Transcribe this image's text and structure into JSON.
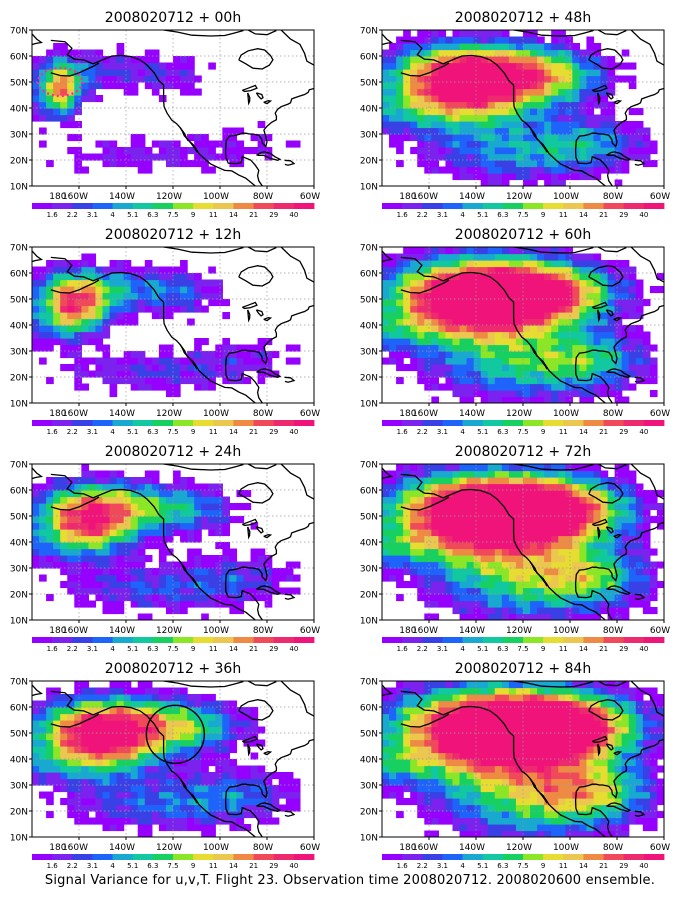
{
  "caption": "Signal Variance for u,v,T. Flight 23. Observation time 2008020712. 2008020600 ensemble.",
  "chart_data": {
    "type": "heatmap",
    "x_ticks": [
      "180",
      "160W",
      "140W",
      "120W",
      "100W",
      "80W",
      "60W"
    ],
    "y_ticks": [
      "10N",
      "20N",
      "30N",
      "40N",
      "50N",
      "60N",
      "70N"
    ],
    "xlim": [
      180,
      300
    ],
    "ylim": [
      10,
      70
    ],
    "grid": true,
    "colorbar": {
      "labels": [
        "1.6",
        "2.2",
        "3.1",
        "4",
        "5.1",
        "6.3",
        "7.5",
        "9",
        "11",
        "14",
        "21",
        "29",
        "40"
      ],
      "colors": [
        "#9600ff",
        "#7c22ee",
        "#3840e6",
        "#1e64fa",
        "#18a8d0",
        "#12c8a0",
        "#18d060",
        "#8ce628",
        "#e6dc32",
        "#ebc750",
        "#ee8a44",
        "#f04a5a",
        "#ee2a6e",
        "#f0147a"
      ]
    },
    "panels": [
      {
        "title": "2008020712 + 00h",
        "spread": 0.0,
        "peak": 8
      },
      {
        "title": "2008020712 + 48h",
        "spread": 0.55,
        "peak": 10
      },
      {
        "title": "2008020712 + 12h",
        "spread": 0.15,
        "peak": 9
      },
      {
        "title": "2008020712 + 60h",
        "spread": 0.7,
        "peak": 11
      },
      {
        "title": "2008020712 + 24h",
        "spread": 0.3,
        "peak": 9
      },
      {
        "title": "2008020712 + 72h",
        "spread": 0.8,
        "peak": 11
      },
      {
        "title": "2008020712 + 36h",
        "spread": 0.42,
        "peak": 10
      },
      {
        "title": "2008020712 + 84h",
        "spread": 0.9,
        "peak": 10
      }
    ]
  }
}
